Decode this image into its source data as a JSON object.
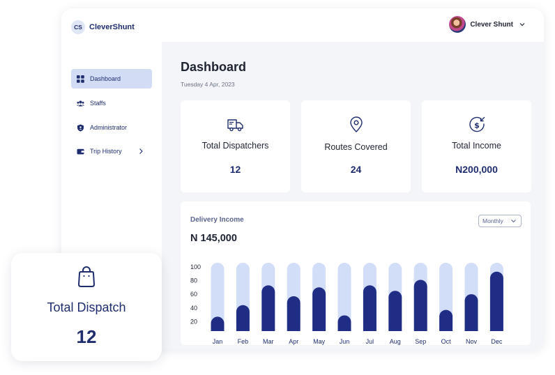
{
  "app": {
    "logo_badge": "CS",
    "logo_text": "CleverShunt"
  },
  "user": {
    "name": "Clever Shunt"
  },
  "sidebar": {
    "items": [
      {
        "label": "Dashboard",
        "icon": "grid-icon",
        "active": true
      },
      {
        "label": "Staffs",
        "icon": "users-icon",
        "active": false
      },
      {
        "label": "Administrator",
        "icon": "admin-shield-icon",
        "active": false
      },
      {
        "label": "Trip History",
        "icon": "wallet-icon",
        "active": false
      }
    ]
  },
  "page": {
    "title": "Dashboard",
    "date": "Tuesday 4 Apr, 2023"
  },
  "stats": [
    {
      "label": "Total Dispatchers",
      "value": "12",
      "icon": "truck-icon"
    },
    {
      "label": "Routes Covered",
      "value": "24",
      "icon": "location-pin-icon"
    },
    {
      "label": "Total Income",
      "value": "N200,000",
      "icon": "dollar-income-icon"
    }
  ],
  "delivery": {
    "title": "Delivery Income",
    "amount": "N 145,000",
    "period": "Monthly"
  },
  "float_card": {
    "label": "Total Dispatch",
    "value": "12",
    "icon": "shopping-bag-icon"
  },
  "colors": {
    "accent": "#1f2d84",
    "bar_track": "#d2ddf7",
    "active_nav": "#d2ddf5"
  },
  "chart_data": {
    "type": "bar",
    "categories": [
      "Jan",
      "Feb",
      "Mar",
      "Apr",
      "May",
      "Jun",
      "Jul",
      "Aug",
      "Sep",
      "Oct",
      "Nov",
      "Dec"
    ],
    "values": [
      21,
      38,
      67,
      51,
      64,
      23,
      67,
      59,
      75,
      31,
      54,
      87
    ],
    "y_ticks": [
      100,
      80,
      60,
      40,
      20
    ],
    "ylim": [
      0,
      100
    ],
    "grid": false
  }
}
